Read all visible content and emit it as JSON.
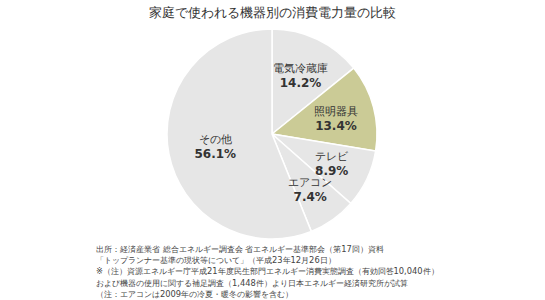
{
  "chart_data": {
    "type": "pie",
    "title": "家庭で使われる機器別の消費電力量の比較",
    "categories": [
      "電気冷蔵庫",
      "照明器具",
      "テレビ",
      "エアコン",
      "その他"
    ],
    "values": [
      14.2,
      13.4,
      8.9,
      7.4,
      56.1
    ],
    "value_labels": [
      "14.2%",
      "13.4%",
      "8.9%",
      "7.4%",
      "56.1%"
    ],
    "colors": [
      "#e6e6e6",
      "#cbcb96",
      "#e6e6e6",
      "#e6e6e6",
      "#e6e6e6"
    ],
    "data_labels": true,
    "annotations": [
      "出所：経済産業省 総合エネルギー調査会 省エネルギー基準部会（第17回）資料",
      "「トップランナー基準の現状等について」（平成23年12月26日）",
      "※（注）資源エネルギー庁平成21年度民生部門エネルギー消費実態調査（有効回答10,040件）",
      "および機器の使用に関する補足調査（1,448件）より日本エネルギー経済研究所が試算",
      "（注：エアコンは2009年の冷夏・暖冬の影響を含む）"
    ]
  }
}
